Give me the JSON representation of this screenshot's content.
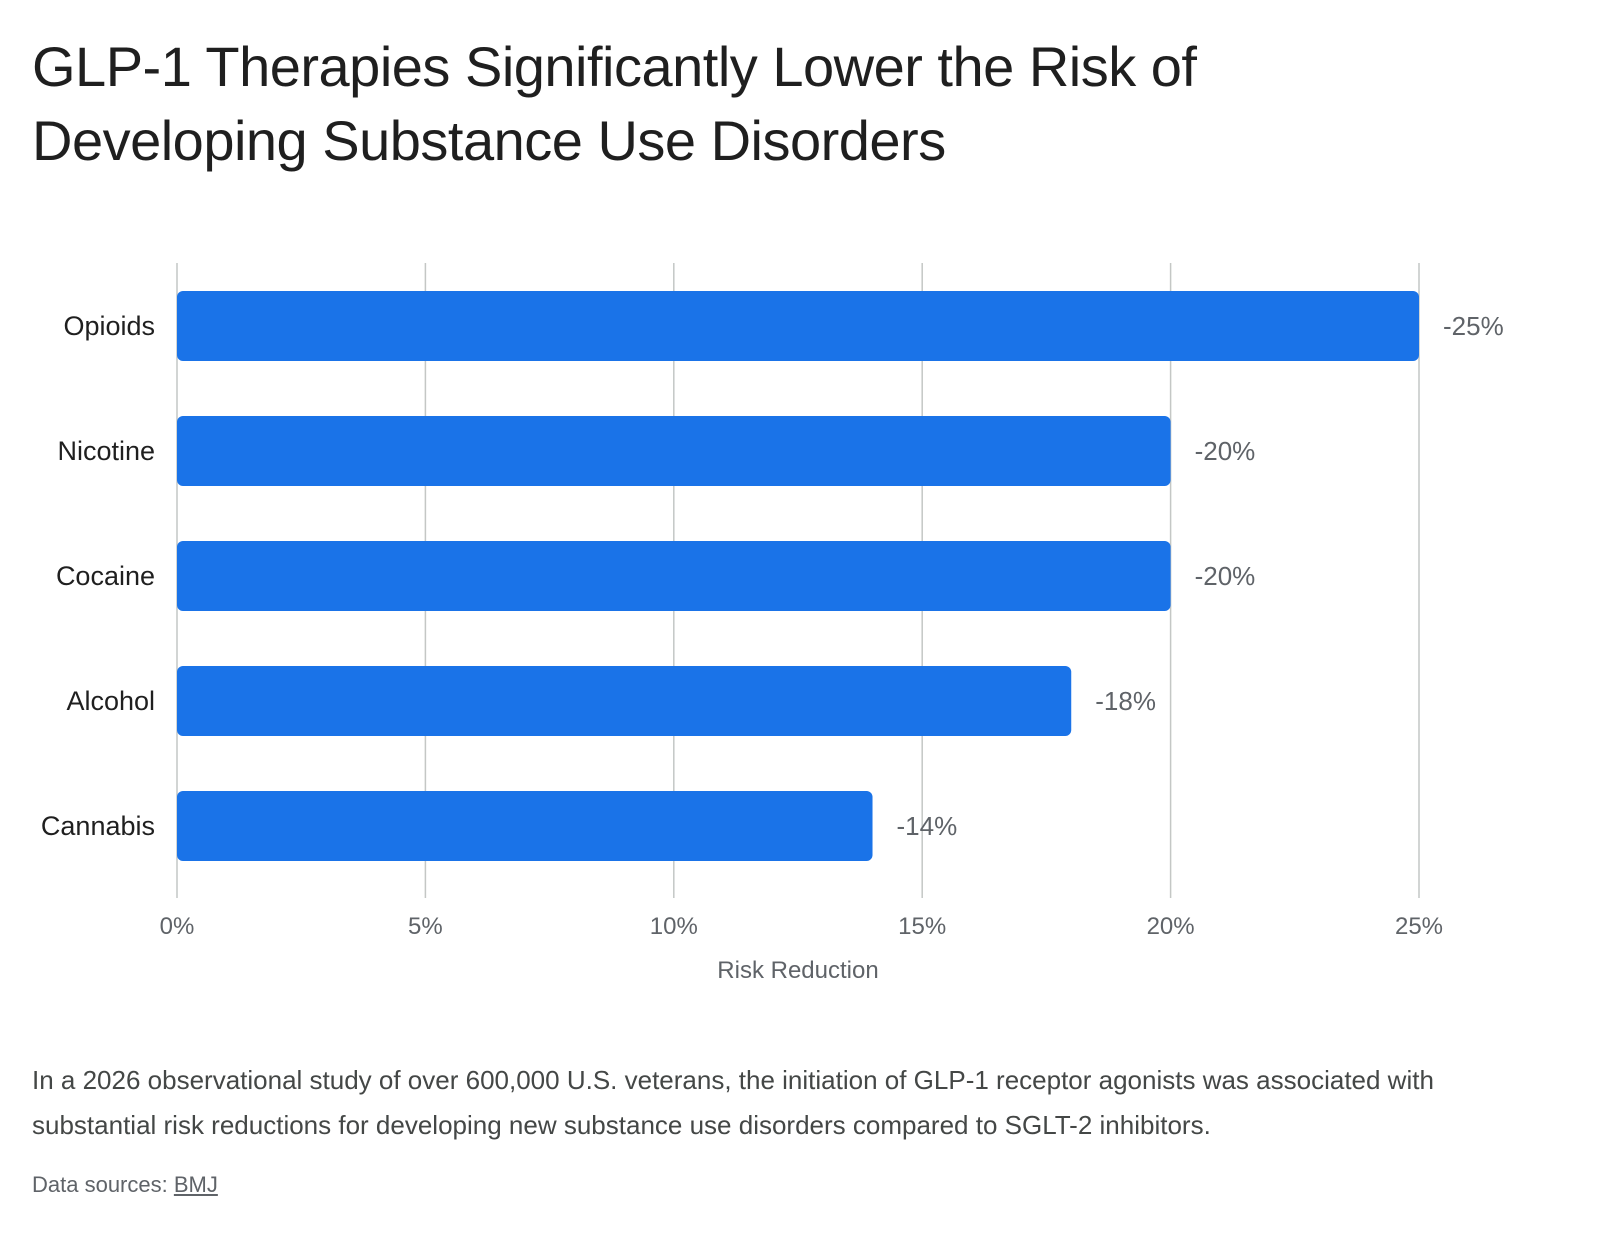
{
  "title": "GLP-1 Therapies Significantly Lower the Risk of Developing Substance Use Disorders",
  "caption": "In a 2026 observational study of over 600,000 U.S. veterans, the initiation of GLP-1 receptor agonists was associated with substantial risk reductions for developing new substance use disorders compared to SGLT-2 inhibitors.",
  "sources": {
    "label": "Data sources:",
    "link_text": "BMJ"
  },
  "colors": {
    "bar": "#1a73e8",
    "grid": "#c4c7c5",
    "tick_text": "#5f6368",
    "category_text": "#1f1f1f",
    "data_label_text": "#5f6368"
  },
  "chart_data": {
    "type": "bar",
    "orientation": "horizontal",
    "categories": [
      "Opioids",
      "Nicotine",
      "Cocaine",
      "Alcohol",
      "Cannabis"
    ],
    "values": [
      25,
      20,
      20,
      18,
      14
    ],
    "data_labels": [
      "-25%",
      "-20%",
      "-20%",
      "-18%",
      "-14%"
    ],
    "xlabel": "Risk Reduction",
    "ylabel": "",
    "xlim": [
      0,
      25
    ],
    "x_ticks": [
      0,
      5,
      10,
      15,
      20,
      25
    ],
    "x_tick_labels": [
      "0%",
      "5%",
      "10%",
      "15%",
      "20%",
      "25%"
    ],
    "grid": "vertical"
  }
}
